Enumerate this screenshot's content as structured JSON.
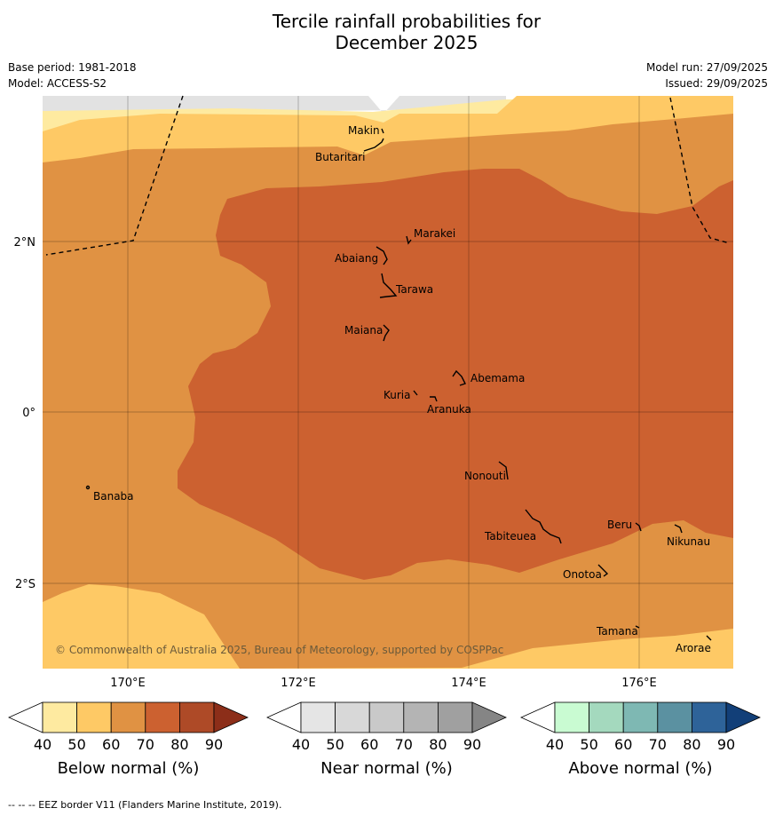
{
  "title": {
    "line1": "Tercile rainfall probabilities for",
    "line2": "December 2025"
  },
  "meta": {
    "base_period": "Base period: 1981-2018",
    "model": "Model: ACCESS-S2",
    "model_run": "Model run: 27/09/2025",
    "issued": "Issued: 29/09/2025"
  },
  "axes": {
    "lon_labels": [
      "170°E",
      "172°E",
      "174°E",
      "176°E"
    ],
    "lat_labels": [
      "2°N",
      "0°",
      "2°S"
    ]
  },
  "places": {
    "makin": "Makin",
    "butaritari": "Butaritari",
    "marakei": "Marakei",
    "abaiang": "Abaiang",
    "tarawa": "Tarawa",
    "maiana": "Maiana",
    "abemama": "Abemama",
    "kuria": "Kuria",
    "aranuka": "Aranuka",
    "banaba": "Banaba",
    "nonouti": "Nonouti",
    "beru": "Beru",
    "tabiteuea": "Tabiteuea",
    "nikunau": "Nikunau",
    "onotoa": "Onotoa",
    "tamana": "Tamana",
    "arorae": "Arorae"
  },
  "copyright": "© Commonwealth of Australia 2025, Bureau of Meteorology, supported by COSPPac",
  "colorbars": [
    {
      "title": "Below normal (%)",
      "ticks": [
        "40",
        "50",
        "60",
        "70",
        "80",
        "90"
      ],
      "colors": [
        "#ffffff",
        "#feeaa0",
        "#fec965",
        "#e09243",
        "#cc6130",
        "#ae4a27",
        "#8c2e19"
      ]
    },
    {
      "title": "Near normal (%)",
      "ticks": [
        "40",
        "50",
        "60",
        "70",
        "80",
        "90"
      ],
      "colors": [
        "#ffffff",
        "#e5e5e5",
        "#d8d8d8",
        "#c9c9c9",
        "#b4b4b4",
        "#a0a0a0",
        "#858585"
      ]
    },
    {
      "title": "Above normal (%)",
      "ticks": [
        "40",
        "50",
        "60",
        "70",
        "80",
        "90"
      ],
      "colors": [
        "#ffffff",
        "#c9fbd2",
        "#a4d9be",
        "#7eb8b3",
        "#5b91a1",
        "#2e6399",
        "#123f78"
      ]
    }
  ],
  "footer": "--  --  -- EEZ border V11 (Flanders Marine Institute, 2019)."
}
